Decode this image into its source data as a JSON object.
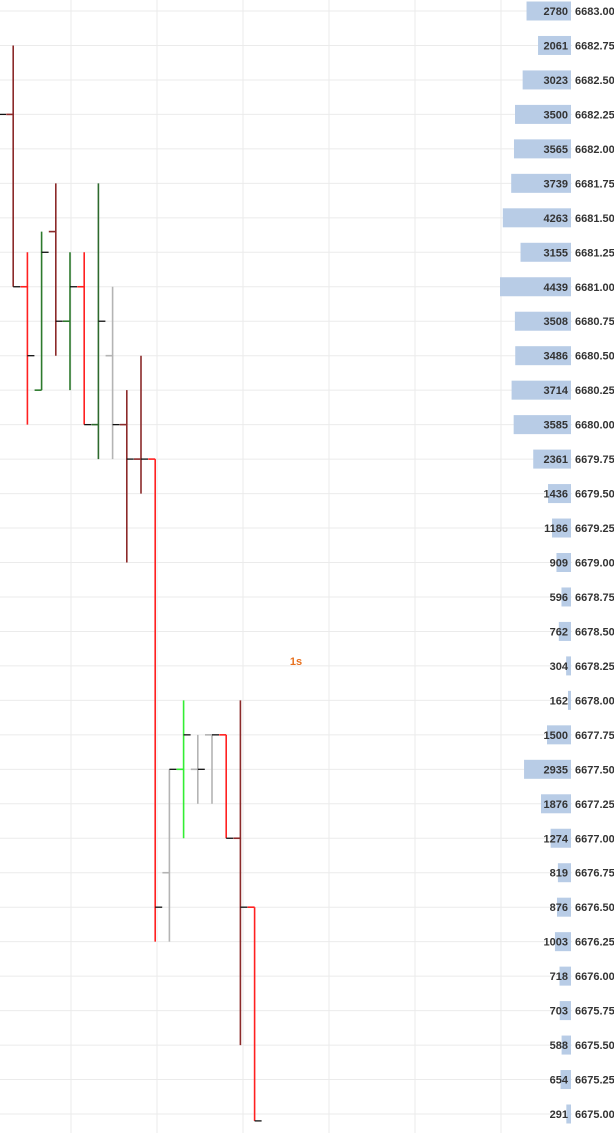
{
  "chart_data": {
    "type": "ohlc-bar",
    "timeframe_label": "1s",
    "colors": {
      "background": "#ffffff",
      "grid": "#ebebeb",
      "volume_bar": "#b8cce6",
      "timeframe_label": "#e8701e"
    },
    "y_axis": {
      "min": 6675.0,
      "max": 6683.0,
      "step": 0.25,
      "side": "right"
    },
    "price_ticks": [
      "6683.00",
      "6682.75",
      "6682.50",
      "6682.25",
      "6682.00",
      "6681.75",
      "6681.50",
      "6681.25",
      "6681.00",
      "6680.75",
      "6680.50",
      "6680.25",
      "6680.00",
      "6679.75",
      "6679.50",
      "6679.25",
      "6679.00",
      "6678.75",
      "6678.50",
      "6678.25",
      "6678.00",
      "6677.75",
      "6677.50",
      "6677.25",
      "6677.00",
      "6676.75",
      "6676.50",
      "6676.25",
      "6676.00",
      "6675.75",
      "6675.50",
      "6675.25",
      "6675.00"
    ],
    "volume_profile": [
      {
        "price": 6683.0,
        "volume": 2780
      },
      {
        "price": 6682.75,
        "volume": 2061
      },
      {
        "price": 6682.5,
        "volume": 3023
      },
      {
        "price": 6682.25,
        "volume": 3500
      },
      {
        "price": 6682.0,
        "volume": 3565
      },
      {
        "price": 6681.75,
        "volume": 3739
      },
      {
        "price": 6681.5,
        "volume": 4263
      },
      {
        "price": 6681.25,
        "volume": 3155
      },
      {
        "price": 6681.0,
        "volume": 4439
      },
      {
        "price": 6680.75,
        "volume": 3508
      },
      {
        "price": 6680.5,
        "volume": 3486
      },
      {
        "price": 6680.25,
        "volume": 3714
      },
      {
        "price": 6680.0,
        "volume": 3585
      },
      {
        "price": 6679.75,
        "volume": 2361
      },
      {
        "price": 6679.5,
        "volume": 1436
      },
      {
        "price": 6679.25,
        "volume": 1186
      },
      {
        "price": 6679.0,
        "volume": 909
      },
      {
        "price": 6678.75,
        "volume": 596
      },
      {
        "price": 6678.5,
        "volume": 762
      },
      {
        "price": 6678.25,
        "volume": 304
      },
      {
        "price": 6678.0,
        "volume": 162
      },
      {
        "price": 6677.75,
        "volume": 1500
      },
      {
        "price": 6677.5,
        "volume": 2935
      },
      {
        "price": 6677.25,
        "volume": 1876
      },
      {
        "price": 6677.0,
        "volume": 1274
      },
      {
        "price": 6676.75,
        "volume": 819
      },
      {
        "price": 6676.5,
        "volume": 876
      },
      {
        "price": 6676.25,
        "volume": 1003
      },
      {
        "price": 6676.0,
        "volume": 718
      },
      {
        "price": 6675.75,
        "volume": 703
      },
      {
        "price": 6675.5,
        "volume": 588
      },
      {
        "price": 6675.25,
        "volume": 654
      },
      {
        "price": 6675.0,
        "volume": 291
      }
    ],
    "bars": [
      {
        "open": 6682.25,
        "high": 6682.5,
        "low": 6681.75,
        "close": 6682.25,
        "color": "#2d7a2d"
      },
      {
        "open": 6682.25,
        "high": 6682.75,
        "low": 6681.0,
        "close": 6681.0,
        "color": "#8b2a2a"
      },
      {
        "open": 6681.0,
        "high": 6681.25,
        "low": 6680.0,
        "close": 6680.5,
        "color": "#ff2020"
      },
      {
        "open": 6680.25,
        "high": 6681.4,
        "low": 6680.25,
        "close": 6681.25,
        "color": "#2d7a2d"
      },
      {
        "open": 6681.4,
        "high": 6681.75,
        "low": 6680.5,
        "close": 6680.75,
        "color": "#8b2a2a"
      },
      {
        "open": 6680.75,
        "high": 6681.25,
        "low": 6680.25,
        "close": 6681.0,
        "color": "#2d7a2d"
      },
      {
        "open": 6681.0,
        "high": 6681.25,
        "low": 6680.0,
        "close": 6680.0,
        "color": "#ff2020"
      },
      {
        "open": 6680.0,
        "high": 6681.75,
        "low": 6679.75,
        "close": 6680.75,
        "color": "#2d6a2d"
      },
      {
        "open": 6680.5,
        "high": 6681.0,
        "low": 6679.75,
        "close": 6680.0,
        "color": "#b4b4b4"
      },
      {
        "open": 6680.0,
        "high": 6680.25,
        "low": 6679.0,
        "close": 6679.75,
        "color": "#8b2a2a"
      },
      {
        "open": 6679.75,
        "high": 6680.5,
        "low": 6679.5,
        "close": 6679.75,
        "color": "#8b2a2a"
      },
      {
        "open": 6679.75,
        "high": 6679.75,
        "low": 6676.25,
        "close": 6676.5,
        "color": "#ff2020"
      },
      {
        "open": 6676.75,
        "high": 6677.5,
        "low": 6676.25,
        "close": 6677.5,
        "color": "#b4b4b4"
      },
      {
        "open": 6677.5,
        "high": 6678.0,
        "low": 6677.0,
        "close": 6677.75,
        "color": "#33ee33"
      },
      {
        "open": 6677.5,
        "high": 6677.75,
        "low": 6677.25,
        "close": 6677.5,
        "color": "#b4b4b4"
      },
      {
        "open": 6677.75,
        "high": 6677.75,
        "low": 6677.25,
        "close": 6677.75,
        "color": "#b4b4b4"
      },
      {
        "open": 6677.75,
        "high": 6677.75,
        "low": 6677.0,
        "close": 6677.0,
        "color": "#ff2020"
      },
      {
        "open": 6677.0,
        "high": 6678.0,
        "low": 6675.5,
        "close": 6676.5,
        "color": "#8b2a2a"
      },
      {
        "open": 6676.5,
        "high": 6676.5,
        "low": 6674.95,
        "close": 6674.95,
        "color": "#ff2020"
      }
    ]
  }
}
